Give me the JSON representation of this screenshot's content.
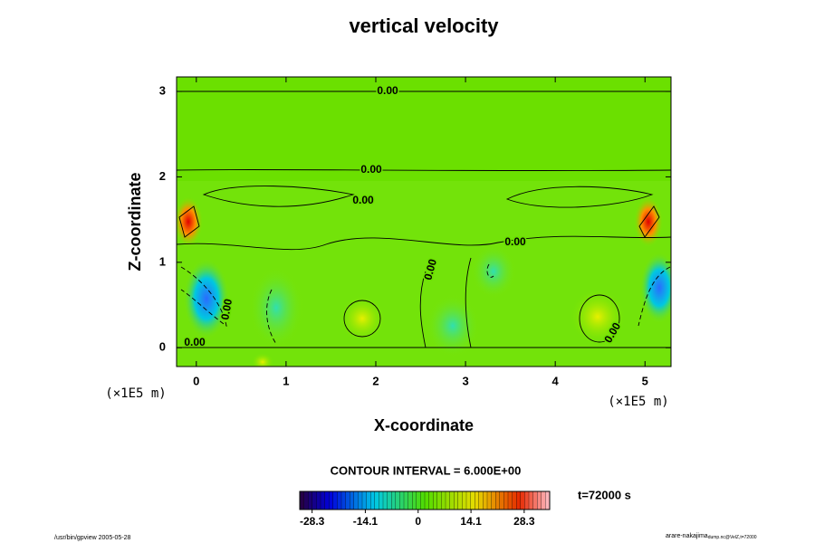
{
  "chart_data": {
    "type": "contour",
    "title": "vertical velocity",
    "xlabel": "X-coordinate",
    "ylabel": "Z-coordinate",
    "x_unit": "(×1E5 m)",
    "xlim": [
      -0.22,
      5.29
    ],
    "ylim": [
      -0.22,
      3.17
    ],
    "xticks": [
      0,
      1,
      2,
      3,
      4,
      5
    ],
    "yticks": [
      0,
      1,
      2,
      3
    ],
    "contour_label": "0.00",
    "contour_interval_text": "CONTOUR INTERVAL = 6.000E+00",
    "time_text": "t=72000 s",
    "colorbar": {
      "lim": [
        -31.6,
        35.1
      ],
      "ticks": [
        -28.3,
        -14.1,
        0,
        14.1,
        28.3
      ]
    },
    "footer_left": "/usr/bin/gpview 2005-05-28",
    "footer_right": "arare-nakajima",
    "footer_right_sub": "dump.nc@VelZ,t=72000"
  }
}
